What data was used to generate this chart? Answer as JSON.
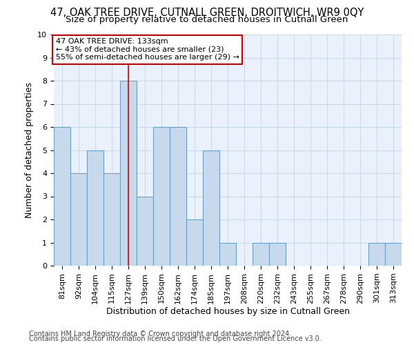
{
  "title": "47, OAK TREE DRIVE, CUTNALL GREEN, DROITWICH, WR9 0QY",
  "subtitle": "Size of property relative to detached houses in Cutnall Green",
  "xlabel": "Distribution of detached houses by size in Cutnall Green",
  "ylabel": "Number of detached properties",
  "categories": [
    "81sqm",
    "92sqm",
    "104sqm",
    "115sqm",
    "127sqm",
    "139sqm",
    "150sqm",
    "162sqm",
    "174sqm",
    "185sqm",
    "197sqm",
    "208sqm",
    "220sqm",
    "232sqm",
    "243sqm",
    "255sqm",
    "267sqm",
    "278sqm",
    "290sqm",
    "301sqm",
    "313sqm"
  ],
  "values": [
    6,
    4,
    5,
    4,
    8,
    3,
    6,
    6,
    2,
    5,
    1,
    0,
    1,
    1,
    0,
    0,
    0,
    0,
    0,
    1,
    1
  ],
  "bar_color": "#c9d9ec",
  "bar_edge_color": "#6a9ec4",
  "highlight_index": 4,
  "highlight_line_color": "#cc0000",
  "ylim": [
    0,
    10
  ],
  "yticks": [
    0,
    1,
    2,
    3,
    4,
    5,
    6,
    7,
    8,
    9,
    10
  ],
  "annotation_text": "47 OAK TREE DRIVE: 133sqm\n← 43% of detached houses are smaller (23)\n55% of semi-detached houses are larger (29) →",
  "annotation_box_color": "#ffffff",
  "annotation_box_edge": "#cc0000",
  "footer1": "Contains HM Land Registry data © Crown copyright and database right 2024.",
  "footer2": "Contains public sector information licensed under the Open Government Licence v3.0.",
  "bg_color": "#ffffff",
  "plot_bg_color": "#eaf1fa",
  "grid_color": "#c8d8e8",
  "title_fontsize": 10.5,
  "subtitle_fontsize": 9.5,
  "axis_label_fontsize": 9,
  "tick_fontsize": 8,
  "annotation_fontsize": 8,
  "footer_fontsize": 7
}
